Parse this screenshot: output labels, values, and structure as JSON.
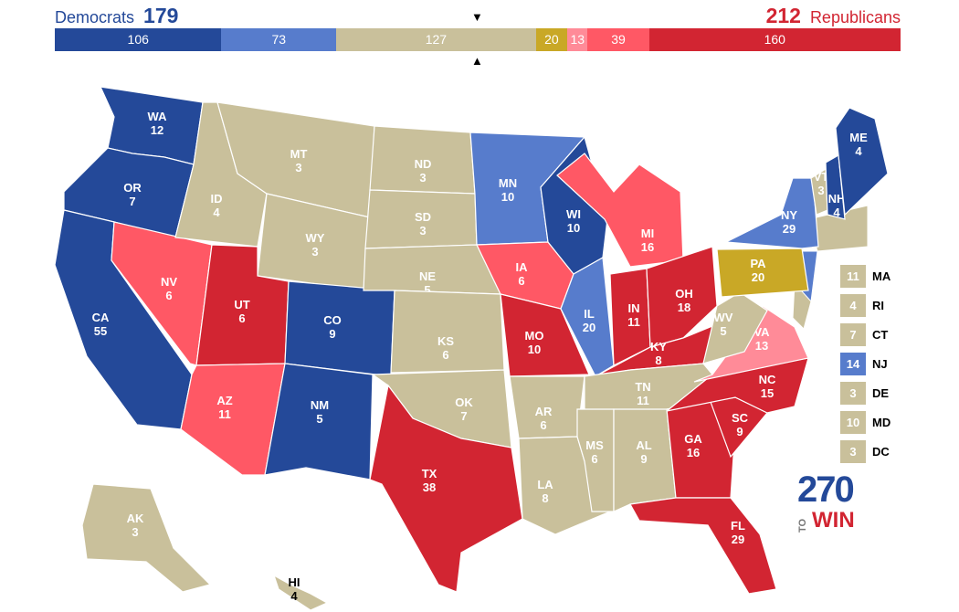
{
  "header": {
    "dem_label": "Democrats",
    "dem_total": "179",
    "rep_total": "212",
    "rep_label": "Republicans"
  },
  "bar": [
    {
      "value": 106,
      "label": "106",
      "color": "#244999"
    },
    {
      "value": 73,
      "label": "73",
      "color": "#577ccc"
    },
    {
      "value": 127,
      "label": "127",
      "color": "#c9c09b"
    },
    {
      "value": 20,
      "label": "20",
      "color": "#c9a826"
    },
    {
      "value": 13,
      "label": "13",
      "color": "#ff8b98"
    },
    {
      "value": 39,
      "label": "39",
      "color": "#ff5865"
    },
    {
      "value": 160,
      "label": "160",
      "color": "#d22532"
    }
  ],
  "markers": {
    "top": "▼",
    "bottom": "▲"
  },
  "colors": {
    "dem_solid": "#244999",
    "dem_likely": "#577ccc",
    "tossup": "#c9c09b",
    "tilt": "#c9a826",
    "rep_lean": "#ff8b98",
    "rep_likely": "#ff5865",
    "rep_solid": "#d22532"
  },
  "states": {
    "WA": {
      "abbr": "WA",
      "ev": "12",
      "rating": "dem_solid"
    },
    "OR": {
      "abbr": "OR",
      "ev": "7",
      "rating": "dem_solid"
    },
    "CA": {
      "abbr": "CA",
      "ev": "55",
      "rating": "dem_solid"
    },
    "NV": {
      "abbr": "NV",
      "ev": "6",
      "rating": "rep_likely"
    },
    "ID": {
      "abbr": "ID",
      "ev": "4",
      "rating": "tossup"
    },
    "MT": {
      "abbr": "MT",
      "ev": "3",
      "rating": "tossup"
    },
    "WY": {
      "abbr": "WY",
      "ev": "3",
      "rating": "tossup"
    },
    "UT": {
      "abbr": "UT",
      "ev": "6",
      "rating": "rep_solid"
    },
    "AZ": {
      "abbr": "AZ",
      "ev": "11",
      "rating": "rep_likely"
    },
    "CO": {
      "abbr": "CO",
      "ev": "9",
      "rating": "dem_solid"
    },
    "NM": {
      "abbr": "NM",
      "ev": "5",
      "rating": "dem_solid"
    },
    "ND": {
      "abbr": "ND",
      "ev": "3",
      "rating": "tossup"
    },
    "SD": {
      "abbr": "SD",
      "ev": "3",
      "rating": "tossup"
    },
    "NE": {
      "abbr": "NE",
      "ev": "5",
      "rating": "tossup"
    },
    "KS": {
      "abbr": "KS",
      "ev": "6",
      "rating": "tossup"
    },
    "OK": {
      "abbr": "OK",
      "ev": "7",
      "rating": "tossup"
    },
    "TX": {
      "abbr": "TX",
      "ev": "38",
      "rating": "rep_solid"
    },
    "MN": {
      "abbr": "MN",
      "ev": "10",
      "rating": "dem_likely"
    },
    "IA": {
      "abbr": "IA",
      "ev": "6",
      "rating": "rep_likely"
    },
    "MO": {
      "abbr": "MO",
      "ev": "10",
      "rating": "rep_solid"
    },
    "AR": {
      "abbr": "AR",
      "ev": "6",
      "rating": "tossup"
    },
    "LA": {
      "abbr": "LA",
      "ev": "8",
      "rating": "tossup"
    },
    "WI": {
      "abbr": "WI",
      "ev": "10",
      "rating": "dem_solid"
    },
    "IL": {
      "abbr": "IL",
      "ev": "20",
      "rating": "dem_likely"
    },
    "MI": {
      "abbr": "MI",
      "ev": "16",
      "rating": "rep_likely"
    },
    "IN": {
      "abbr": "IN",
      "ev": "11",
      "rating": "rep_solid"
    },
    "OH": {
      "abbr": "OH",
      "ev": "18",
      "rating": "rep_solid"
    },
    "KY": {
      "abbr": "KY",
      "ev": "8",
      "rating": "rep_solid"
    },
    "TN": {
      "abbr": "TN",
      "ev": "11",
      "rating": "tossup"
    },
    "MS": {
      "abbr": "MS",
      "ev": "6",
      "rating": "tossup"
    },
    "AL": {
      "abbr": "AL",
      "ev": "9",
      "rating": "tossup"
    },
    "GA": {
      "abbr": "GA",
      "ev": "16",
      "rating": "rep_solid"
    },
    "FL": {
      "abbr": "FL",
      "ev": "29",
      "rating": "rep_solid"
    },
    "SC": {
      "abbr": "SC",
      "ev": "9",
      "rating": "rep_solid"
    },
    "NC": {
      "abbr": "NC",
      "ev": "15",
      "rating": "rep_solid"
    },
    "VA": {
      "abbr": "VA",
      "ev": "13",
      "rating": "rep_lean"
    },
    "WV": {
      "abbr": "WV",
      "ev": "5",
      "rating": "tossup"
    },
    "PA": {
      "abbr": "PA",
      "ev": "20",
      "rating": "tilt"
    },
    "NY": {
      "abbr": "NY",
      "ev": "29",
      "rating": "dem_likely"
    },
    "VT": {
      "abbr": "VT",
      "ev": "3",
      "rating": "tossup"
    },
    "NH": {
      "abbr": "NH",
      "ev": "4",
      "rating": "dem_solid"
    },
    "ME": {
      "abbr": "ME",
      "ev": "4",
      "rating": "dem_solid"
    },
    "AK": {
      "abbr": "AK",
      "ev": "3",
      "rating": "tossup"
    },
    "HI": {
      "abbr": "HI",
      "ev": "4",
      "rating": "tossup"
    }
  },
  "small_states": [
    {
      "abbr": "MA",
      "ev": "11",
      "rating": "tossup"
    },
    {
      "abbr": "RI",
      "ev": "4",
      "rating": "tossup"
    },
    {
      "abbr": "CT",
      "ev": "7",
      "rating": "tossup"
    },
    {
      "abbr": "NJ",
      "ev": "14",
      "rating": "dem_likely"
    },
    {
      "abbr": "DE",
      "ev": "3",
      "rating": "tossup"
    },
    {
      "abbr": "MD",
      "ev": "10",
      "rating": "tossup"
    },
    {
      "abbr": "DC",
      "ev": "3",
      "rating": "tossup"
    }
  ],
  "logo": {
    "number": "270",
    "to": "TO",
    "win": "WIN"
  }
}
